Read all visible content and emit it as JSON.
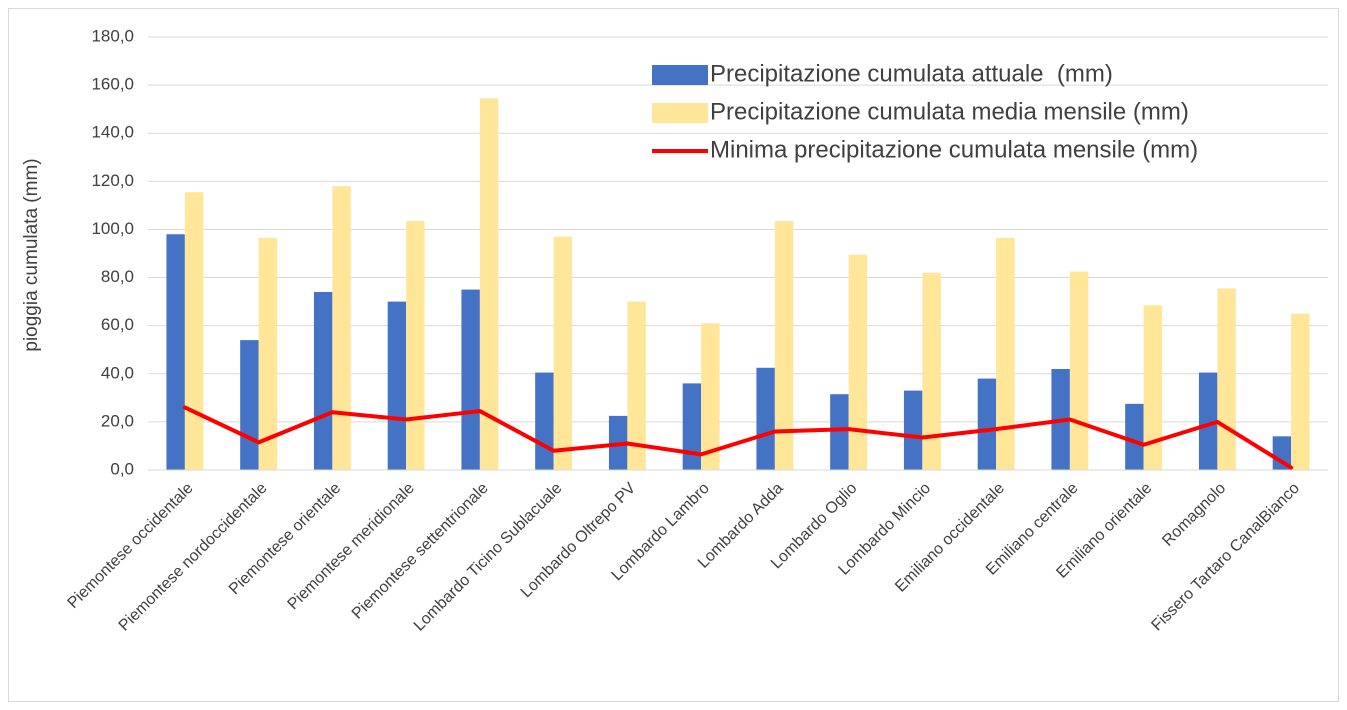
{
  "chart_data": {
    "type": "bar_line",
    "y_label": "pioggia cumulata (mm)",
    "categories": [
      "Piemontese occidentale",
      "Piemontese nordoccidentale",
      "Piemontese orientale",
      "Piemontese meridionale",
      "Piemontese settentrionale",
      "Lombardo Ticino Sublacuale",
      "Lombardo Oltrepo PV",
      "Lombardo Lambro",
      "Lombardo Adda",
      "Lombardo Oglio",
      "Lombardo Mincio",
      "Emiliano occidentale",
      "Emiliano centrale",
      "Emiliano orientale",
      "Romagnolo",
      "Fissero Tartaro CanalBianco"
    ],
    "series": [
      {
        "name": "Precipitazione cumulata attuale  (mm)",
        "type": "bar",
        "color": "#4472c4",
        "values": [
          98,
          54,
          74,
          70,
          75,
          40.5,
          22.5,
          36,
          42.5,
          31.5,
          33,
          38,
          42,
          27.5,
          40.5,
          14
        ]
      },
      {
        "name": "Precipitazione cumulata media mensile (mm)",
        "type": "bar",
        "color": "#ffe699",
        "values": [
          115.5,
          96.5,
          118,
          103.5,
          154.5,
          97,
          70,
          61,
          103.5,
          89.5,
          82,
          96.5,
          82.5,
          68.5,
          75.5,
          65
        ]
      },
      {
        "name": "Minima precipitazione cumulata mensile (mm)",
        "type": "line",
        "color": "#ff0000",
        "values": [
          26,
          11.5,
          24,
          21,
          24.5,
          8,
          11,
          6.5,
          16,
          17,
          13.5,
          17,
          21,
          10.5,
          20,
          1
        ]
      }
    ],
    "ylim": [
      0,
      180
    ],
    "yticks": [
      {
        "value": 0,
        "label": "0,0"
      },
      {
        "value": 20,
        "label": "20,0"
      },
      {
        "value": 40,
        "label": "40,0"
      },
      {
        "value": 60,
        "label": "60,0"
      },
      {
        "value": 80,
        "label": "80,0"
      },
      {
        "value": 100,
        "label": "100,0"
      },
      {
        "value": 120,
        "label": "120,0"
      },
      {
        "value": 140,
        "label": "140,0"
      },
      {
        "value": 160,
        "label": "160,0"
      },
      {
        "value": 180,
        "label": "180,0"
      }
    ],
    "grid": true,
    "legend": "upper right"
  }
}
